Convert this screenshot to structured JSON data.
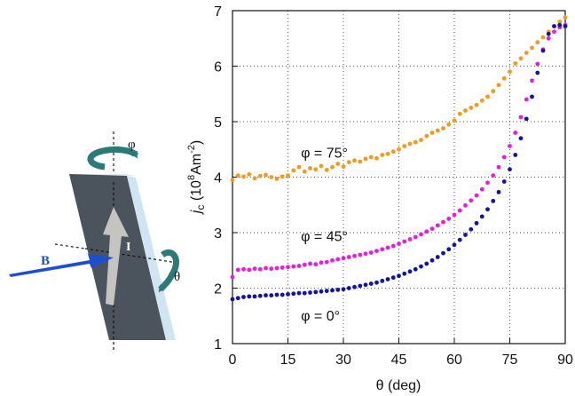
{
  "diagram": {
    "labels": {
      "field": "B",
      "current": "I",
      "tilt": "θ",
      "rotation": "φ"
    },
    "colors": {
      "sample_face": "#4b545c",
      "sample_edge": "#c5e0ee",
      "arrow_field": "#1d4fcc",
      "arrow_current": "#c4c4c0",
      "rotation_arrows": "#2b7a78"
    }
  },
  "chart_data": {
    "type": "scatter",
    "xlabel": "θ (deg)",
    "ylabel": {
      "italic": "j",
      "sub": "c",
      "rest": " (10",
      "sup1": "8",
      "unit": "Am",
      "sup2": "-2",
      "close": ")"
    },
    "xlim": [
      0,
      90
    ],
    "ylim": [
      1,
      7
    ],
    "xticks": [
      "0",
      "15",
      "30",
      "45",
      "60",
      "75",
      "90"
    ],
    "yticks": [
      "1",
      "2",
      "3",
      "4",
      "5",
      "6",
      "7"
    ],
    "grid": true,
    "series": [
      {
        "name": "φ = 75°",
        "color": "#f39a1e",
        "x": [
          0,
          1.5,
          3,
          4.5,
          6,
          7.5,
          9,
          10.5,
          12,
          13.5,
          15,
          16.5,
          18,
          19.5,
          21,
          22.5,
          24,
          25.5,
          27,
          28.5,
          30,
          31.5,
          33,
          34.5,
          36,
          37.5,
          39,
          40.5,
          42,
          43.5,
          45,
          46.5,
          48,
          49.5,
          51,
          52.5,
          54,
          55.5,
          57,
          58.5,
          60,
          61.5,
          63,
          64.5,
          66,
          67.5,
          69,
          70.5,
          72,
          73.5,
          75,
          76.5,
          78,
          79.5,
          81,
          82.5,
          84,
          85.5,
          87,
          88.5,
          90
        ],
        "values": [
          3.95,
          4.03,
          4.01,
          4.05,
          3.98,
          4.02,
          4.04,
          4.0,
          3.97,
          4.01,
          4.03,
          4.12,
          4.18,
          4.1,
          4.16,
          4.14,
          4.2,
          4.13,
          4.18,
          4.24,
          4.19,
          4.27,
          4.3,
          4.28,
          4.33,
          4.36,
          4.34,
          4.4,
          4.42,
          4.46,
          4.5,
          4.56,
          4.6,
          4.63,
          4.67,
          4.74,
          4.8,
          4.84,
          4.88,
          4.95,
          5.02,
          5.14,
          5.2,
          5.25,
          5.3,
          5.38,
          5.45,
          5.55,
          5.66,
          5.78,
          5.9,
          6.05,
          6.14,
          6.24,
          6.33,
          6.43,
          6.52,
          6.62,
          6.72,
          6.8,
          6.88
        ]
      },
      {
        "name": "φ = 45°",
        "color": "#e81ce0",
        "x": [
          0,
          1.5,
          3,
          4.5,
          6,
          7.5,
          9,
          10.5,
          12,
          13.5,
          15,
          16.5,
          18,
          19.5,
          21,
          22.5,
          24,
          25.5,
          27,
          28.5,
          30,
          31.5,
          33,
          34.5,
          36,
          37.5,
          39,
          40.5,
          42,
          43.5,
          45,
          46.5,
          48,
          49.5,
          51,
          52.5,
          54,
          55.5,
          57,
          58.5,
          60,
          61.5,
          63,
          64.5,
          66,
          67.5,
          69,
          70.5,
          72,
          73.5,
          75,
          76.5,
          78,
          79.5,
          81,
          82.5,
          84,
          85.5,
          87,
          88.5,
          90
        ],
        "values": [
          2.2,
          2.33,
          2.34,
          2.33,
          2.35,
          2.34,
          2.36,
          2.35,
          2.36,
          2.37,
          2.38,
          2.39,
          2.4,
          2.42,
          2.44,
          2.43,
          2.46,
          2.47,
          2.5,
          2.52,
          2.54,
          2.56,
          2.58,
          2.6,
          2.62,
          2.64,
          2.67,
          2.7,
          2.73,
          2.76,
          2.8,
          2.84,
          2.88,
          2.92,
          2.97,
          3.02,
          3.07,
          3.13,
          3.19,
          3.25,
          3.32,
          3.4,
          3.49,
          3.58,
          3.67,
          3.78,
          3.9,
          4.03,
          4.18,
          4.36,
          4.56,
          4.8,
          5.08,
          5.4,
          5.74,
          6.04,
          6.3,
          6.5,
          6.62,
          6.7,
          6.74
        ]
      },
      {
        "name": "φ = 0°",
        "color": "#1313a8",
        "x": [
          0,
          1.5,
          3,
          4.5,
          6,
          7.5,
          9,
          10.5,
          12,
          13.5,
          15,
          16.5,
          18,
          19.5,
          21,
          22.5,
          24,
          25.5,
          27,
          28.5,
          30,
          31.5,
          33,
          34.5,
          36,
          37.5,
          39,
          40.5,
          42,
          43.5,
          45,
          46.5,
          48,
          49.5,
          51,
          52.5,
          54,
          55.5,
          57,
          58.5,
          60,
          61.5,
          63,
          64.5,
          66,
          67.5,
          69,
          70.5,
          72,
          73.5,
          75,
          76.5,
          78,
          79.5,
          81,
          82.5,
          84,
          85.5,
          87,
          88.5,
          90
        ],
        "values": [
          1.8,
          1.82,
          1.84,
          1.85,
          1.85,
          1.86,
          1.87,
          1.87,
          1.88,
          1.88,
          1.89,
          1.9,
          1.91,
          1.91,
          1.92,
          1.93,
          1.94,
          1.95,
          1.96,
          1.97,
          1.98,
          2.0,
          2.02,
          2.04,
          2.06,
          2.08,
          2.1,
          2.13,
          2.16,
          2.19,
          2.22,
          2.26,
          2.3,
          2.34,
          2.39,
          2.44,
          2.5,
          2.56,
          2.63,
          2.7,
          2.78,
          2.87,
          2.96,
          3.06,
          3.17,
          3.29,
          3.42,
          3.57,
          3.73,
          3.92,
          4.14,
          4.4,
          4.7,
          5.05,
          5.45,
          5.88,
          6.28,
          6.58,
          6.72,
          6.74,
          6.72
        ]
      }
    ],
    "series_labels": [
      {
        "text": "φ = 75°",
        "x": 18.5,
        "y": 4.35
      },
      {
        "text": "φ = 45°",
        "x": 18.5,
        "y": 2.85
      },
      {
        "text": "φ = 0°",
        "x": 18.5,
        "y": 1.42
      }
    ]
  }
}
